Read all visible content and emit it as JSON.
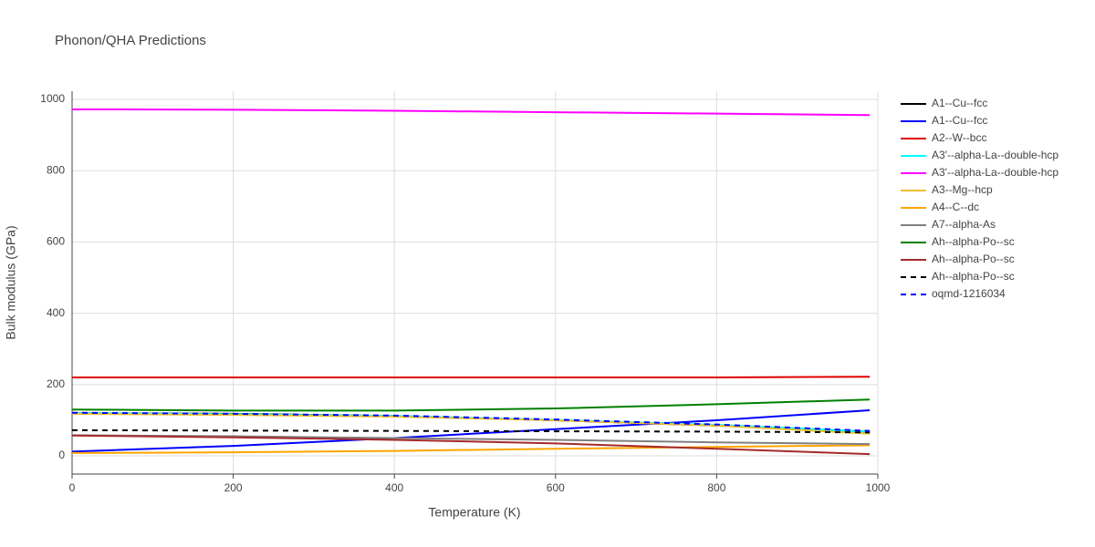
{
  "chart_data": {
    "type": "line",
    "title": "Phonon/QHA Predictions",
    "x_label": "Temperature (K)",
    "y_label": "Bulk modulus (GPa)",
    "x": [
      0,
      200,
      400,
      600,
      800,
      990
    ],
    "xlim": [
      0,
      1000
    ],
    "xticks": [
      0,
      200,
      400,
      600,
      800,
      1000
    ],
    "ylim": [
      -51,
      1023
    ],
    "yticks": [
      0,
      200,
      400,
      600,
      800,
      1000
    ],
    "grid": true,
    "legend": "right",
    "series": [
      {
        "name": "A1--Cu--fcc",
        "color": "#000000",
        "dash": false,
        "values": [
          120,
          118,
          112,
          100,
          85,
          68
        ]
      },
      {
        "name": "A1--Cu--fcc",
        "color": "#0000ff",
        "dash": false,
        "values": [
          12,
          28,
          50,
          75,
          100,
          128
        ]
      },
      {
        "name": "A2--W--bcc",
        "color": "#e00000",
        "dash": false,
        "values": [
          220,
          220,
          220,
          220,
          220,
          222
        ]
      },
      {
        "name": "A3'--alpha-La--double-hcp",
        "color": "#00ffff",
        "dash": false,
        "values": [
          120,
          117,
          112,
          101,
          87,
          68
        ]
      },
      {
        "name": "A3'--alpha-La--double-hcp",
        "color": "#ff00ff",
        "dash": false,
        "values": [
          972,
          971,
          968,
          964,
          960,
          956
        ]
      },
      {
        "name": "A3--Mg--hcp",
        "color": "#f0c030",
        "dash": false,
        "values": [
          118,
          115,
          110,
          100,
          85,
          62
        ]
      },
      {
        "name": "A4--C--dc",
        "color": "#ffa500",
        "dash": false,
        "values": [
          8,
          10,
          14,
          20,
          25,
          30
        ]
      },
      {
        "name": "A7--alpha-As",
        "color": "#808080",
        "dash": false,
        "values": [
          58,
          55,
          50,
          45,
          38,
          33
        ]
      },
      {
        "name": "Ah--alpha-Po--sc",
        "color": "#008000",
        "dash": false,
        "values": [
          130,
          127,
          127,
          133,
          145,
          158
        ]
      },
      {
        "name": "Ah--alpha-Po--sc",
        "color": "#a52a2a",
        "dash": false,
        "values": [
          57,
          52,
          45,
          35,
          20,
          5
        ]
      },
      {
        "name": "Ah--alpha-Po--sc",
        "color": "#000000",
        "dash": true,
        "values": [
          72,
          71,
          70,
          69,
          68,
          66
        ]
      },
      {
        "name": "oqmd-1216034",
        "color": "#0000ff",
        "dash": true,
        "values": [
          121,
          118,
          113,
          102,
          88,
          70
        ]
      }
    ]
  }
}
